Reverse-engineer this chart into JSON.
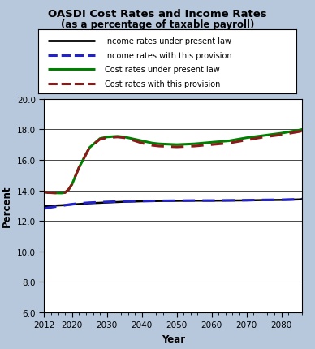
{
  "title_line1": "OASDI Cost Rates and Income Rates",
  "title_line2": "(as a percentage of taxable payroll)",
  "xlabel": "Year",
  "ylabel": "Percent",
  "ylim": [
    6.0,
    20.0
  ],
  "yticks": [
    6.0,
    8.0,
    10.0,
    12.0,
    14.0,
    16.0,
    18.0,
    20.0
  ],
  "xlim": [
    2012,
    2086
  ],
  "xticks": [
    2012,
    2020,
    2030,
    2040,
    2050,
    2060,
    2070,
    2080
  ],
  "background_color": "#b8c8dc",
  "plot_bg_color": "#ffffff",
  "legend_labels": [
    "Income rates under present law",
    "Income rates with this provision",
    "Cost rates under present law",
    "Cost rates with this provision"
  ],
  "income_present_law": {
    "years": [
      2012,
      2013,
      2015,
      2017,
      2018,
      2019,
      2020,
      2022,
      2025,
      2030,
      2035,
      2040,
      2045,
      2050,
      2055,
      2060,
      2065,
      2070,
      2075,
      2080,
      2085,
      2086
    ],
    "values": [
      12.95,
      12.97,
      13.0,
      13.02,
      13.03,
      13.05,
      13.07,
      13.1,
      13.15,
      13.2,
      13.25,
      13.28,
      13.3,
      13.31,
      13.32,
      13.32,
      13.33,
      13.34,
      13.36,
      13.37,
      13.4,
      13.42
    ],
    "color": "#000000",
    "linestyle": "solid",
    "linewidth": 1.8
  },
  "income_provision": {
    "years": [
      2012,
      2013,
      2015,
      2017,
      2018,
      2019,
      2020,
      2022,
      2025,
      2030,
      2035,
      2040,
      2045,
      2050,
      2055,
      2060,
      2065,
      2070,
      2075,
      2080,
      2085,
      2086
    ],
    "values": [
      12.8,
      12.85,
      12.92,
      12.98,
      13.02,
      13.06,
      13.09,
      13.14,
      13.19,
      13.24,
      13.28,
      13.3,
      13.31,
      13.32,
      13.33,
      13.33,
      13.34,
      13.35,
      13.37,
      13.38,
      13.41,
      13.43
    ],
    "color": "#2222cc",
    "linestyle": "dashed",
    "linewidth": 2.2
  },
  "cost_present_law": {
    "years": [
      2012,
      2013,
      2015,
      2017,
      2018,
      2019,
      2020,
      2022,
      2025,
      2028,
      2030,
      2033,
      2035,
      2038,
      2040,
      2043,
      2045,
      2050,
      2055,
      2060,
      2065,
      2070,
      2075,
      2080,
      2085,
      2086
    ],
    "values": [
      13.9,
      13.85,
      13.83,
      13.82,
      13.85,
      14.05,
      14.4,
      15.5,
      16.8,
      17.4,
      17.5,
      17.55,
      17.5,
      17.35,
      17.25,
      17.1,
      17.05,
      17.0,
      17.05,
      17.15,
      17.25,
      17.45,
      17.6,
      17.75,
      17.95,
      18.0
    ],
    "color": "#008000",
    "linestyle": "solid",
    "linewidth": 2.2
  },
  "cost_provision": {
    "years": [
      2012,
      2013,
      2015,
      2017,
      2018,
      2019,
      2020,
      2022,
      2025,
      2028,
      2030,
      2033,
      2035,
      2038,
      2040,
      2043,
      2045,
      2050,
      2055,
      2060,
      2065,
      2070,
      2075,
      2080,
      2085,
      2086
    ],
    "values": [
      13.9,
      13.85,
      13.83,
      13.82,
      13.85,
      14.05,
      14.4,
      15.5,
      16.8,
      17.35,
      17.45,
      17.5,
      17.45,
      17.25,
      17.1,
      16.95,
      16.9,
      16.85,
      16.9,
      17.0,
      17.1,
      17.3,
      17.5,
      17.65,
      17.85,
      17.9
    ],
    "color": "#8b1a1a",
    "linestyle": "dashed",
    "linewidth": 2.2
  }
}
